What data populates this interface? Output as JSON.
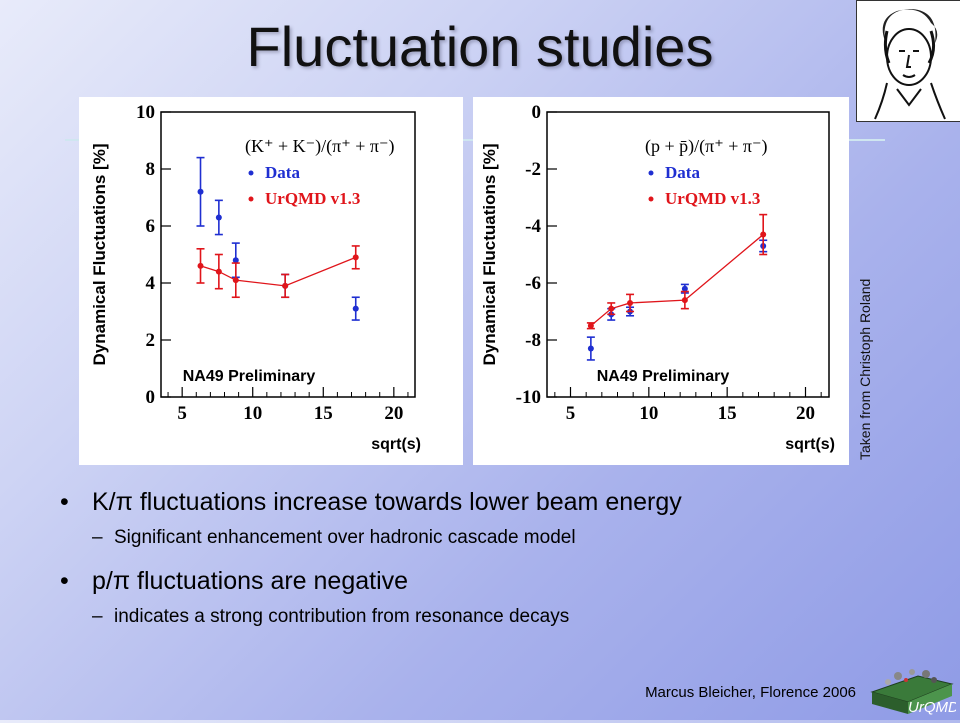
{
  "slide": {
    "title": "Fluctuation studies",
    "side_credit": "Taken from Christoph Roland",
    "footer": "Marcus Bleicher, Florence 2006",
    "logo_text": "UrQMD"
  },
  "bullets": [
    {
      "text": "K/π fluctuations increase towards lower beam energy",
      "sub": "Significant enhancement over hadronic cascade model"
    },
    {
      "text": "p/π fluctuations are negative",
      "sub": "indicates a strong contribution from resonance decays"
    }
  ],
  "chart_data": [
    {
      "type": "line",
      "ylabel": "Dynamical Fluctuations [%]",
      "xlabel": "sqrt(s)",
      "formula": "(K⁺ + K⁻)/(π⁺ + π⁻)",
      "watermark": "NA49  Preliminary",
      "xlim": [
        3.5,
        21.5
      ],
      "ylim": [
        0,
        10
      ],
      "xticks": [
        5,
        10,
        15,
        20
      ],
      "yticks": [
        0,
        2,
        4,
        6,
        8,
        10
      ],
      "series": [
        {
          "name": "Data",
          "color": "#1f2fd1",
          "x": [
            6.3,
            7.6,
            8.8,
            12.3,
            17.3
          ],
          "y": [
            7.2,
            6.3,
            4.8,
            3.9,
            3.1
          ],
          "err": [
            1.2,
            0.6,
            0.6,
            0.4,
            0.4
          ]
        },
        {
          "name": "UrQMD v1.3",
          "color": "#e0151b",
          "x": [
            6.3,
            7.6,
            8.8,
            12.3,
            17.3
          ],
          "y": [
            4.6,
            4.4,
            4.1,
            3.9,
            4.9
          ],
          "err": [
            0.6,
            0.6,
            0.6,
            0.4,
            0.4
          ]
        }
      ]
    },
    {
      "type": "line",
      "ylabel": "Dynamical Fluctuations [%]",
      "xlabel": "sqrt(s)",
      "formula": "(p + p̄)/(π⁺ + π⁻)",
      "watermark": "NA49  Preliminary",
      "xlim": [
        3.5,
        21.5
      ],
      "ylim": [
        -10,
        0
      ],
      "xticks": [
        5,
        10,
        15,
        20
      ],
      "yticks": [
        0,
        -2,
        -4,
        -6,
        -8,
        -10
      ],
      "series": [
        {
          "name": "Data",
          "color": "#1f2fd1",
          "x": [
            6.3,
            7.6,
            8.8,
            12.3,
            17.3
          ],
          "y": [
            -8.3,
            -7.1,
            -7.0,
            -6.2,
            -4.7
          ],
          "err": [
            0.4,
            0.2,
            0.15,
            0.15,
            0.2
          ]
        },
        {
          "name": "UrQMD v1.3",
          "color": "#e0151b",
          "x": [
            6.3,
            7.6,
            8.8,
            12.3,
            17.3
          ],
          "y": [
            -7.5,
            -6.9,
            -6.7,
            -6.6,
            -4.3
          ],
          "err": [
            0.1,
            0.2,
            0.3,
            0.3,
            0.7
          ]
        }
      ]
    }
  ]
}
